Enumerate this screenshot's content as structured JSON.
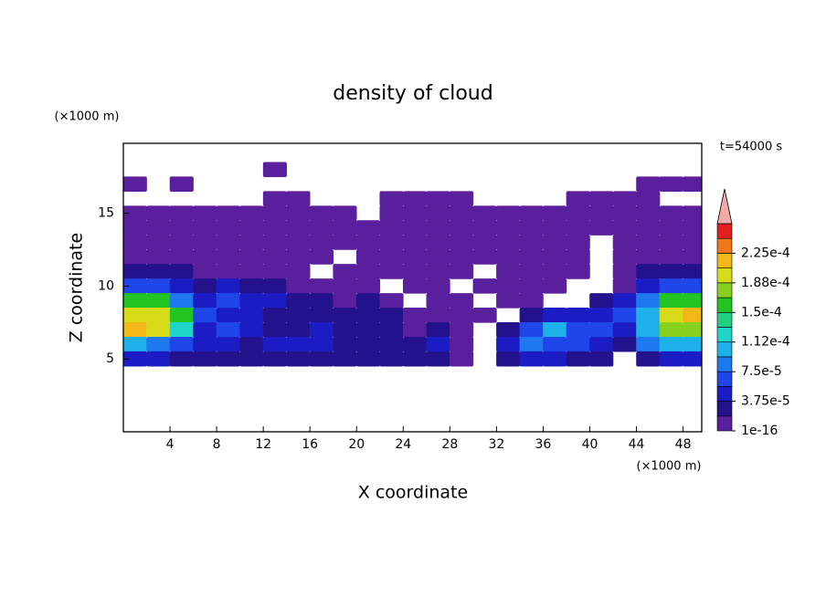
{
  "chart_data": {
    "type": "contourf",
    "title": "density of cloud",
    "x_unit_label": "(×1000 m)",
    "y_unit_label": "(×1000 m)",
    "xlabel": "X coordinate",
    "ylabel": "Z coordinate",
    "annotation": "t=54000 s",
    "xlim": [
      0,
      49.6
    ],
    "ylim": [
      0,
      19.8
    ],
    "xticks": [
      4,
      8,
      12,
      16,
      20,
      24,
      28,
      32,
      36,
      40,
      44,
      48
    ],
    "yticks": [
      5,
      10,
      15
    ],
    "x": [
      1,
      3,
      5,
      7,
      9,
      11,
      13,
      15,
      17,
      19,
      21,
      23,
      25,
      27,
      29,
      31,
      33,
      35,
      37,
      39,
      41,
      43,
      45,
      47,
      49
    ],
    "y": [
      18,
      17,
      16,
      15,
      14,
      13,
      12,
      11,
      10,
      9,
      8,
      7,
      6,
      5
    ],
    "z": [
      [
        null,
        null,
        null,
        null,
        null,
        null,
        1e-05,
        null,
        null,
        null,
        null,
        null,
        null,
        null,
        null,
        null,
        null,
        null,
        null,
        null,
        null,
        null,
        null,
        null,
        null
      ],
      [
        1e-05,
        null,
        1e-05,
        null,
        null,
        null,
        null,
        null,
        null,
        null,
        null,
        null,
        null,
        null,
        null,
        null,
        null,
        null,
        null,
        null,
        null,
        null,
        1e-05,
        1e-05,
        1e-05
      ],
      [
        null,
        null,
        null,
        null,
        null,
        null,
        1e-05,
        1e-05,
        null,
        null,
        null,
        1e-05,
        1e-05,
        1e-05,
        1e-05,
        null,
        null,
        null,
        null,
        1e-05,
        1e-05,
        1e-05,
        1e-05,
        null,
        null
      ],
      [
        1e-05,
        1e-05,
        1e-05,
        1e-05,
        1e-05,
        1e-05,
        1e-05,
        1e-05,
        1e-05,
        1e-05,
        null,
        1e-05,
        1e-05,
        1e-05,
        1e-05,
        1e-05,
        1e-05,
        1e-05,
        1e-05,
        1e-05,
        1e-05,
        1e-05,
        1e-05,
        1e-05,
        1e-05
      ],
      [
        1e-05,
        1e-05,
        1e-05,
        1e-05,
        1e-05,
        1e-05,
        1e-05,
        1e-05,
        1e-05,
        1e-05,
        1e-05,
        1e-05,
        1e-05,
        1e-05,
        1e-05,
        1e-05,
        1e-05,
        1e-05,
        1e-05,
        1e-05,
        1e-05,
        1e-05,
        1e-05,
        1e-05,
        1e-05
      ],
      [
        1e-05,
        1e-05,
        1e-05,
        1e-05,
        1e-05,
        1e-05,
        1e-05,
        1e-05,
        1e-05,
        1e-05,
        1e-05,
        1e-05,
        1e-05,
        1e-05,
        1e-05,
        1e-05,
        1e-05,
        1e-05,
        1e-05,
        1e-05,
        null,
        1e-05,
        1e-05,
        1e-05,
        1e-05
      ],
      [
        1e-05,
        1e-05,
        1e-05,
        1e-05,
        1e-05,
        1e-05,
        1e-05,
        1e-05,
        1e-05,
        null,
        1e-05,
        1e-05,
        1e-05,
        1e-05,
        1e-05,
        1e-05,
        1e-05,
        1e-05,
        1e-05,
        1e-05,
        null,
        1e-05,
        1e-05,
        1e-05,
        1e-05
      ],
      [
        3e-05,
        3e-05,
        3e-05,
        1e-05,
        1e-05,
        1e-05,
        1e-05,
        1e-05,
        null,
        1e-05,
        1e-05,
        1e-05,
        1e-05,
        1e-05,
        1e-05,
        null,
        1e-05,
        1e-05,
        1e-05,
        1e-05,
        null,
        1e-05,
        3e-05,
        3e-05,
        3e-05
      ],
      [
        7e-05,
        7e-05,
        5e-05,
        3e-05,
        5e-05,
        3e-05,
        3e-05,
        1e-05,
        1e-05,
        1e-05,
        1e-05,
        null,
        1e-05,
        1e-05,
        null,
        1e-05,
        1e-05,
        1e-05,
        1e-05,
        null,
        null,
        1e-05,
        5e-05,
        7e-05,
        7e-05
      ],
      [
        0.00015,
        0.00015,
        9e-05,
        5e-05,
        7e-05,
        5e-05,
        5e-05,
        3e-05,
        3e-05,
        1e-05,
        3e-05,
        1e-05,
        null,
        1e-05,
        1e-05,
        null,
        1e-05,
        1e-05,
        null,
        null,
        3e-05,
        5e-05,
        9e-05,
        0.00015,
        0.00015
      ],
      [
        0.00019,
        0.00019,
        0.00015,
        7e-05,
        5e-05,
        5e-05,
        3e-05,
        3e-05,
        3e-05,
        3e-05,
        3e-05,
        3e-05,
        1e-05,
        1e-05,
        1e-05,
        1e-05,
        null,
        3e-05,
        5e-05,
        5e-05,
        5e-05,
        7e-05,
        0.00011,
        0.00019,
        0.00021
      ],
      [
        0.00021,
        0.00019,
        0.00013,
        5e-05,
        7e-05,
        5e-05,
        3e-05,
        3e-05,
        5e-05,
        3e-05,
        3e-05,
        3e-05,
        1e-05,
        3e-05,
        1e-05,
        null,
        3e-05,
        7e-05,
        0.00011,
        7e-05,
        7e-05,
        5e-05,
        0.00011,
        0.00017,
        0.00017
      ],
      [
        0.00011,
        9e-05,
        7e-05,
        5e-05,
        5e-05,
        3e-05,
        5e-05,
        5e-05,
        5e-05,
        3e-05,
        3e-05,
        3e-05,
        3e-05,
        5e-05,
        1e-05,
        null,
        5e-05,
        9e-05,
        7e-05,
        7e-05,
        5e-05,
        3e-05,
        9e-05,
        0.00011,
        0.00011
      ],
      [
        5e-05,
        5e-05,
        3e-05,
        3e-05,
        3e-05,
        3e-05,
        3e-05,
        3e-05,
        3e-05,
        3e-05,
        3e-05,
        3e-05,
        3e-05,
        3e-05,
        1e-05,
        null,
        3e-05,
        5e-05,
        5e-05,
        3e-05,
        3e-05,
        null,
        3e-05,
        5e-05,
        5e-05
      ]
    ],
    "colorbar": {
      "levels": [
        1e-16,
        1.875e-05,
        3.75e-05,
        5.625e-05,
        7.5e-05,
        9.375e-05,
        0.0001125,
        0.00013125,
        0.00015,
        0.00016875,
        0.0001875,
        0.00020625,
        0.000225,
        0.00024375,
        0.0002625
      ],
      "colors": [
        "#5a1f9c",
        "#23128c",
        "#1c1cc4",
        "#1e46e8",
        "#1e78f0",
        "#1eb0e8",
        "#1fd4c8",
        "#20d080",
        "#24c424",
        "#86d01e",
        "#d8dc18",
        "#f2b818",
        "#f07818",
        "#e41e1e"
      ],
      "over_color": "#f4a8a8",
      "ticks": [
        {
          "value": 1e-16,
          "label": "1e-16"
        },
        {
          "value": 3.75e-05,
          "label": "3.75e-5"
        },
        {
          "value": 7.5e-05,
          "label": "7.5e-5"
        },
        {
          "value": 0.0001125,
          "label": "1.12e-4"
        },
        {
          "value": 0.00015,
          "label": "1.5e-4"
        },
        {
          "value": 0.0001875,
          "label": "1.88e-4"
        },
        {
          "value": 0.000225,
          "label": "2.25e-4"
        }
      ]
    }
  }
}
